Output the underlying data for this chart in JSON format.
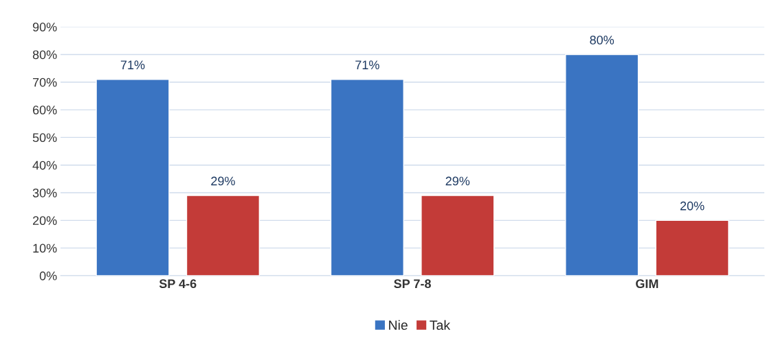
{
  "chart_data": {
    "type": "bar",
    "categories": [
      "SP 4-6",
      "SP 7-8",
      "GIM"
    ],
    "series": [
      {
        "name": "Nie",
        "color": "#3a74c2",
        "values": [
          71,
          71,
          80
        ],
        "value_labels": [
          "71%",
          "71%",
          "80%"
        ]
      },
      {
        "name": "Tak",
        "color": "#c33b38",
        "values": [
          29,
          29,
          20
        ],
        "value_labels": [
          "29%",
          "29%",
          "20%"
        ]
      }
    ],
    "ylim": [
      0,
      90
    ],
    "yticks": [
      {
        "value": 0,
        "label": "0%"
      },
      {
        "value": 10,
        "label": "10%"
      },
      {
        "value": 20,
        "label": "20%"
      },
      {
        "value": 30,
        "label": "30%"
      },
      {
        "value": 40,
        "label": "40%"
      },
      {
        "value": 50,
        "label": "50%"
      },
      {
        "value": 60,
        "label": "60%"
      },
      {
        "value": 70,
        "label": "70%"
      },
      {
        "value": 80,
        "label": "80%"
      },
      {
        "value": 90,
        "label": "90%"
      }
    ],
    "grid": "y",
    "legend": "bottom"
  }
}
